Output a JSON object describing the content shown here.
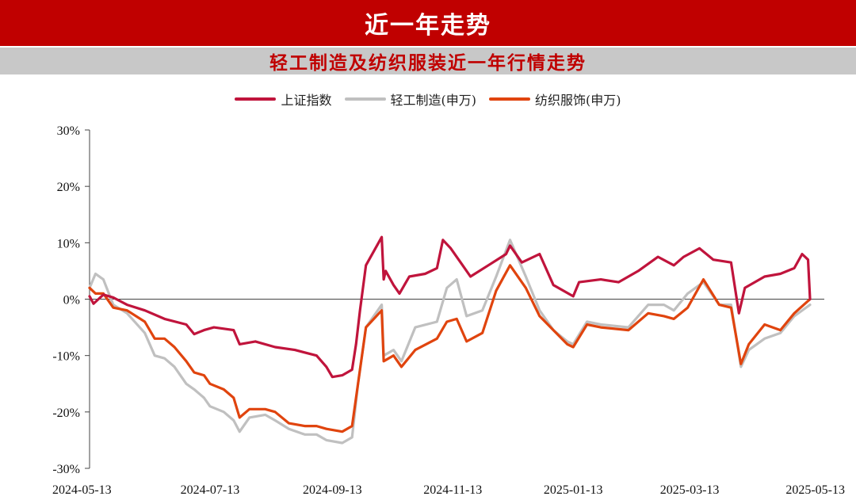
{
  "header": {
    "title": "近一年走势"
  },
  "subheader": {
    "title": "轻工制造及纺织服装近一年行情走势"
  },
  "colors": {
    "banner": "#c00000",
    "subbanner": "#c8c8c8"
  },
  "chart_data": {
    "type": "line",
    "title": "轻工制造及纺织服装近一年行情走势",
    "legend_position": "top",
    "grid": false,
    "x_range": [
      "2024-05-13",
      "2025-05-13"
    ],
    "x_ticks": [
      "2024-05-13",
      "2024-07-13",
      "2024-09-13",
      "2024-11-13",
      "2025-01-13",
      "2025-03-13",
      "2025-05-13"
    ],
    "y_range": [
      -30,
      30
    ],
    "y_ticks": [
      30,
      20,
      10,
      0,
      -10,
      -20,
      -30
    ],
    "y_tick_labels": [
      "30%",
      "20%",
      "10%",
      "0%",
      "-10%",
      "-20%",
      "-30%"
    ],
    "y_unit": "%",
    "series": [
      {
        "name": "上证指数",
        "color": "#c0143c",
        "points": [
          [
            "2024-05-13",
            0.5
          ],
          [
            "2024-05-15",
            -0.8
          ],
          [
            "2024-05-20",
            0.8
          ],
          [
            "2024-05-25",
            0.3
          ],
          [
            "2024-06-01",
            -1.0
          ],
          [
            "2024-06-10",
            -2.0
          ],
          [
            "2024-06-20",
            -3.5
          ],
          [
            "2024-07-01",
            -4.5
          ],
          [
            "2024-07-05",
            -6.2
          ],
          [
            "2024-07-10",
            -5.5
          ],
          [
            "2024-07-15",
            -5.0
          ],
          [
            "2024-07-25",
            -5.5
          ],
          [
            "2024-07-28",
            -8.0
          ],
          [
            "2024-08-05",
            -7.5
          ],
          [
            "2024-08-15",
            -8.5
          ],
          [
            "2024-08-25",
            -9.0
          ],
          [
            "2024-09-05",
            -10.0
          ],
          [
            "2024-09-10",
            -12.0
          ],
          [
            "2024-09-13",
            -13.8
          ],
          [
            "2024-09-18",
            -13.5
          ],
          [
            "2024-09-23",
            -12.5
          ],
          [
            "2024-09-25",
            -8.0
          ],
          [
            "2024-09-27",
            -2.0
          ],
          [
            "2024-09-30",
            6.0
          ],
          [
            "2024-10-08",
            11.0
          ],
          [
            "2024-10-09",
            3.5
          ],
          [
            "2024-10-10",
            5.0
          ],
          [
            "2024-10-14",
            2.5
          ],
          [
            "2024-10-17",
            1.0
          ],
          [
            "2024-10-22",
            4.0
          ],
          [
            "2024-10-30",
            4.5
          ],
          [
            "2024-11-05",
            5.5
          ],
          [
            "2024-11-08",
            10.5
          ],
          [
            "2024-11-12",
            9.0
          ],
          [
            "2024-11-18",
            6.0
          ],
          [
            "2024-11-22",
            4.0
          ],
          [
            "2024-12-01",
            6.0
          ],
          [
            "2024-12-10",
            8.0
          ],
          [
            "2024-12-12",
            9.5
          ],
          [
            "2024-12-18",
            6.5
          ],
          [
            "2024-12-27",
            8.0
          ],
          [
            "2025-01-03",
            2.5
          ],
          [
            "2025-01-13",
            0.5
          ],
          [
            "2025-01-16",
            3.0
          ],
          [
            "2025-01-27",
            3.5
          ],
          [
            "2025-02-05",
            3.0
          ],
          [
            "2025-02-15",
            5.0
          ],
          [
            "2025-02-25",
            7.5
          ],
          [
            "2025-03-05",
            6.0
          ],
          [
            "2025-03-10",
            7.5
          ],
          [
            "2025-03-18",
            9.0
          ],
          [
            "2025-03-25",
            7.0
          ],
          [
            "2025-04-03",
            6.5
          ],
          [
            "2025-04-07",
            -2.5
          ],
          [
            "2025-04-10",
            2.0
          ],
          [
            "2025-04-20",
            4.0
          ],
          [
            "2025-04-28",
            4.5
          ],
          [
            "2025-05-05",
            5.5
          ],
          [
            "2025-05-09",
            8.0
          ],
          [
            "2025-05-12",
            7.0
          ],
          [
            "2025-05-13",
            0.0
          ]
        ]
      },
      {
        "name": "轻工制造(申万)",
        "color": "#c0c0c0",
        "points": [
          [
            "2024-05-13",
            2.0
          ],
          [
            "2024-05-16",
            4.5
          ],
          [
            "2024-05-20",
            3.5
          ],
          [
            "2024-05-25",
            -1.0
          ],
          [
            "2024-06-01",
            -2.5
          ],
          [
            "2024-06-10",
            -6.0
          ],
          [
            "2024-06-15",
            -10.0
          ],
          [
            "2024-06-20",
            -10.5
          ],
          [
            "2024-06-25",
            -12.0
          ],
          [
            "2024-07-01",
            -15.0
          ],
          [
            "2024-07-05",
            -16.0
          ],
          [
            "2024-07-10",
            -17.5
          ],
          [
            "2024-07-13",
            -19.0
          ],
          [
            "2024-07-20",
            -20.0
          ],
          [
            "2024-07-25",
            -21.5
          ],
          [
            "2024-07-28",
            -23.5
          ],
          [
            "2024-08-02",
            -21.0
          ],
          [
            "2024-08-10",
            -20.5
          ],
          [
            "2024-08-15",
            -21.5
          ],
          [
            "2024-08-22",
            -23.0
          ],
          [
            "2024-08-30",
            -24.0
          ],
          [
            "2024-09-05",
            -24.0
          ],
          [
            "2024-09-10",
            -25.0
          ],
          [
            "2024-09-18",
            -25.5
          ],
          [
            "2024-09-23",
            -24.5
          ],
          [
            "2024-09-26",
            -15.0
          ],
          [
            "2024-09-30",
            -5.0
          ],
          [
            "2024-10-08",
            -1.0
          ],
          [
            "2024-10-09",
            -10.0
          ],
          [
            "2024-10-14",
            -9.0
          ],
          [
            "2024-10-18",
            -11.0
          ],
          [
            "2024-10-25",
            -5.0
          ],
          [
            "2024-11-05",
            -4.0
          ],
          [
            "2024-11-10",
            2.0
          ],
          [
            "2024-11-15",
            3.5
          ],
          [
            "2024-11-20",
            -3.0
          ],
          [
            "2024-11-28",
            -2.0
          ],
          [
            "2024-12-05",
            4.0
          ],
          [
            "2024-12-12",
            10.5
          ],
          [
            "2024-12-20",
            4.0
          ],
          [
            "2024-12-27",
            -2.0
          ],
          [
            "2025-01-03",
            -5.5
          ],
          [
            "2025-01-10",
            -7.5
          ],
          [
            "2025-01-13",
            -8.0
          ],
          [
            "2025-01-20",
            -4.0
          ],
          [
            "2025-01-27",
            -4.5
          ],
          [
            "2025-02-10",
            -5.0
          ],
          [
            "2025-02-20",
            -1.0
          ],
          [
            "2025-02-28",
            -1.0
          ],
          [
            "2025-03-05",
            -2.0
          ],
          [
            "2025-03-12",
            1.0
          ],
          [
            "2025-03-20",
            3.0
          ],
          [
            "2025-03-28",
            -1.0
          ],
          [
            "2025-04-03",
            -1.0
          ],
          [
            "2025-04-08",
            -12.0
          ],
          [
            "2025-04-12",
            -9.0
          ],
          [
            "2025-04-20",
            -7.0
          ],
          [
            "2025-04-28",
            -6.0
          ],
          [
            "2025-05-05",
            -3.0
          ],
          [
            "2025-05-13",
            -1.0
          ]
        ]
      },
      {
        "name": "纺织服饰(申万)",
        "color": "#e0440e",
        "points": [
          [
            "2024-05-13",
            2.0
          ],
          [
            "2024-05-16",
            1.0
          ],
          [
            "2024-05-20",
            1.0
          ],
          [
            "2024-05-25",
            -1.5
          ],
          [
            "2024-06-01",
            -2.0
          ],
          [
            "2024-06-10",
            -4.0
          ],
          [
            "2024-06-15",
            -7.0
          ],
          [
            "2024-06-20",
            -7.0
          ],
          [
            "2024-06-25",
            -8.5
          ],
          [
            "2024-07-01",
            -11.0
          ],
          [
            "2024-07-05",
            -13.0
          ],
          [
            "2024-07-10",
            -13.5
          ],
          [
            "2024-07-13",
            -15.0
          ],
          [
            "2024-07-20",
            -16.0
          ],
          [
            "2024-07-25",
            -17.5
          ],
          [
            "2024-07-28",
            -21.0
          ],
          [
            "2024-08-02",
            -19.5
          ],
          [
            "2024-08-10",
            -19.5
          ],
          [
            "2024-08-15",
            -20.0
          ],
          [
            "2024-08-22",
            -22.0
          ],
          [
            "2024-08-30",
            -22.5
          ],
          [
            "2024-09-05",
            -22.5
          ],
          [
            "2024-09-10",
            -23.0
          ],
          [
            "2024-09-18",
            -23.5
          ],
          [
            "2024-09-23",
            -22.5
          ],
          [
            "2024-09-26",
            -15.0
          ],
          [
            "2024-09-30",
            -5.0
          ],
          [
            "2024-10-08",
            -2.0
          ],
          [
            "2024-10-09",
            -11.0
          ],
          [
            "2024-10-14",
            -10.0
          ],
          [
            "2024-10-18",
            -12.0
          ],
          [
            "2024-10-25",
            -9.0
          ],
          [
            "2024-11-05",
            -7.0
          ],
          [
            "2024-11-10",
            -4.0
          ],
          [
            "2024-11-15",
            -3.5
          ],
          [
            "2024-11-20",
            -7.5
          ],
          [
            "2024-11-28",
            -6.0
          ],
          [
            "2024-12-05",
            1.5
          ],
          [
            "2024-12-12",
            6.0
          ],
          [
            "2024-12-20",
            2.0
          ],
          [
            "2024-12-27",
            -3.0
          ],
          [
            "2025-01-03",
            -5.5
          ],
          [
            "2025-01-10",
            -8.0
          ],
          [
            "2025-01-13",
            -8.5
          ],
          [
            "2025-01-20",
            -4.5
          ],
          [
            "2025-01-27",
            -5.0
          ],
          [
            "2025-02-10",
            -5.5
          ],
          [
            "2025-02-20",
            -2.5
          ],
          [
            "2025-02-28",
            -3.0
          ],
          [
            "2025-03-05",
            -3.5
          ],
          [
            "2025-03-12",
            -1.5
          ],
          [
            "2025-03-20",
            3.5
          ],
          [
            "2025-03-28",
            -1.0
          ],
          [
            "2025-04-03",
            -1.5
          ],
          [
            "2025-04-08",
            -11.5
          ],
          [
            "2025-04-12",
            -8.0
          ],
          [
            "2025-04-20",
            -4.5
          ],
          [
            "2025-04-28",
            -5.5
          ],
          [
            "2025-05-05",
            -2.5
          ],
          [
            "2025-05-13",
            0.0
          ]
        ]
      }
    ]
  }
}
